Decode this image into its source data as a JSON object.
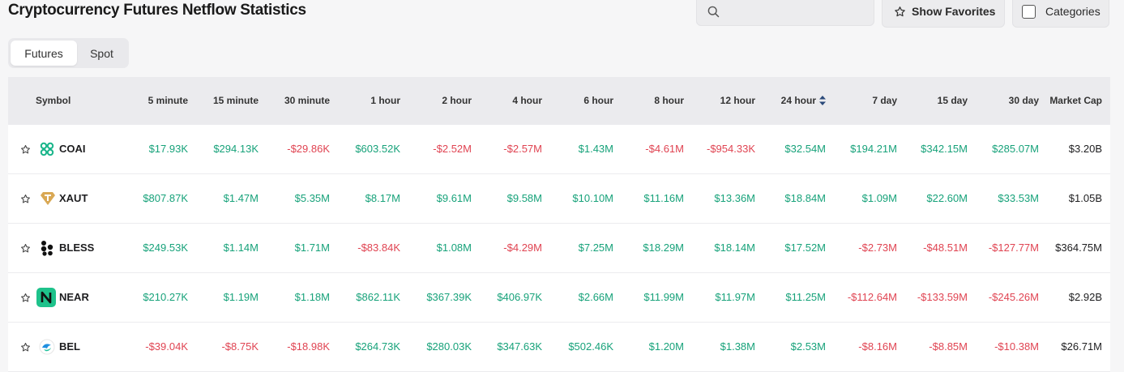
{
  "header": {
    "title": "Cryptocurrency Futures Netflow Statistics",
    "search_placeholder": "",
    "show_favorites_label": "Show Favorites",
    "categories_label": "Categories"
  },
  "tabs": [
    {
      "label": "Futures",
      "active": true
    },
    {
      "label": "Spot",
      "active": false
    }
  ],
  "table": {
    "columns": [
      "Symbol",
      "5 minute",
      "15 minute",
      "30 minute",
      "1 hour",
      "2 hour",
      "4 hour",
      "6 hour",
      "8 hour",
      "12 hour",
      "24 hour",
      "7 day",
      "15 day",
      "30 day",
      "Market Cap"
    ],
    "sorted_column": "24 hour",
    "rows": [
      {
        "symbol": "COAI",
        "icon": "coai-logo-icon",
        "values": [
          "$17.93K",
          "$294.13K",
          "-$29.86K",
          "$603.52K",
          "-$2.52M",
          "-$2.57M",
          "$1.43M",
          "-$4.61M",
          "-$954.33K",
          "$32.54M",
          "$194.21M",
          "$342.15M",
          "$285.07M",
          "$3.20B"
        ]
      },
      {
        "symbol": "XAUT",
        "icon": "xaut-logo-icon",
        "values": [
          "$807.87K",
          "$1.47M",
          "$5.35M",
          "$8.17M",
          "$9.61M",
          "$9.58M",
          "$10.10M",
          "$11.16M",
          "$13.36M",
          "$18.84M",
          "$1.09M",
          "$22.60M",
          "$33.53M",
          "$1.05B"
        ]
      },
      {
        "symbol": "BLESS",
        "icon": "bless-logo-icon",
        "values": [
          "$249.53K",
          "$1.14M",
          "$1.71M",
          "-$83.84K",
          "$1.08M",
          "-$4.29M",
          "$7.25M",
          "$18.29M",
          "$18.14M",
          "$17.52M",
          "-$2.73M",
          "-$48.51M",
          "-$127.77M",
          "$364.75M"
        ]
      },
      {
        "symbol": "NEAR",
        "icon": "near-logo-icon",
        "values": [
          "$210.27K",
          "$1.19M",
          "$1.18M",
          "$862.11K",
          "$367.39K",
          "$406.97K",
          "$2.66M",
          "$11.99M",
          "$11.97M",
          "$11.25M",
          "-$112.64M",
          "-$133.59M",
          "-$245.26M",
          "$2.92B"
        ]
      },
      {
        "symbol": "BEL",
        "icon": "bel-logo-icon",
        "values": [
          "-$39.04K",
          "-$8.75K",
          "-$18.98K",
          "$264.73K",
          "$280.03K",
          "$347.63K",
          "$502.46K",
          "$1.20M",
          "$1.38M",
          "$2.53M",
          "-$8.16M",
          "-$8.85M",
          "-$10.38M",
          "$26.71M"
        ]
      }
    ]
  },
  "colors": {
    "positive": "#17a27a",
    "negative": "#e04452",
    "header_bg": "#ebebee"
  }
}
